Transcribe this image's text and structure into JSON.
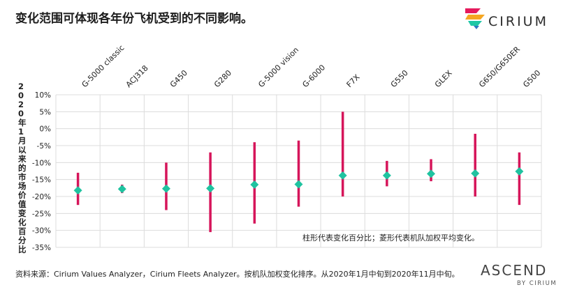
{
  "header": {
    "title": "变化范围可体现各年份飞机受到的不同影响。"
  },
  "logo": {
    "text": "CIRIUM",
    "colors": [
      "#e5195c",
      "#f5a623",
      "#1ec7a6",
      "#2a78c2"
    ]
  },
  "chart_data": {
    "type": "range",
    "categories": [
      "G-5000 classic",
      "ACJ318",
      "G450",
      "G280",
      "G-5000 vision",
      "G-6000",
      "F7X",
      "G550",
      "GLEX",
      "G650/G650ER",
      "G500"
    ],
    "ranges": [
      [
        -22.5,
        -13
      ],
      [
        -19,
        -16.5
      ],
      [
        -24,
        -10
      ],
      [
        -30.5,
        -7
      ],
      [
        -28,
        -4
      ],
      [
        -23,
        -3.5
      ],
      [
        -20,
        5
      ],
      [
        -17,
        -9.5
      ],
      [
        -15.5,
        -9
      ],
      [
        -20,
        -1.5
      ],
      [
        -22.5,
        -7
      ]
    ],
    "averages": [
      -18.2,
      -17.8,
      -17.7,
      -17.6,
      -16.5,
      -16.4,
      -13.8,
      -13.8,
      -13.3,
      -13.2,
      -12.6
    ],
    "ylabel": "2020年1月以来的市场价值变化百分比",
    "ylim": [
      -35,
      10
    ],
    "yticks": [
      "10%",
      "5%",
      "0%",
      "-5%",
      "-10%",
      "-15%",
      "-20%",
      "-25%",
      "-30%",
      "-35%"
    ],
    "yticks_values": [
      10,
      5,
      0,
      -5,
      -10,
      -15,
      -20,
      -25,
      -30,
      -35
    ],
    "annotation": "柱形代表变化百分比；菱形代表机队加权平均变化。",
    "range_color": "#d6155a",
    "marker_color": "#1fc3a0",
    "grid": true
  },
  "footer": {
    "source": "资料来源：Cirium Values Analyzer，Cirium Fleets Analyzer。按机队加权变化排序。从2020年1月中旬到2020年11月中旬。",
    "brand": "ASCEND",
    "brand_sub": "BY CIRIUM"
  }
}
